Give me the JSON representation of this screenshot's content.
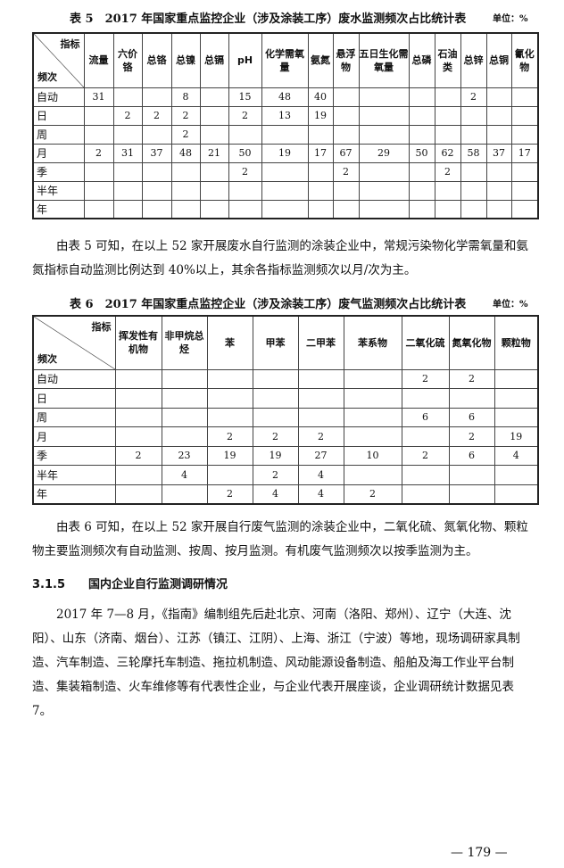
{
  "table5": {
    "caption": "表 5　2017 年国家重点监控企业（涉及涂装工序）废水监测频次占比统计表",
    "unit": "单位：%",
    "corner_top": "指标",
    "corner_bottom": "频次",
    "headers": [
      "流量",
      "六价铬",
      "总铬",
      "总镍",
      "总镉",
      "pH",
      "化学需氧量",
      "氨氮",
      "悬浮物",
      "五日生化需氧量",
      "总磷",
      "石油类",
      "总锌",
      "总铜",
      "氰化物"
    ],
    "rows": [
      {
        "label": "自动",
        "cells": [
          "31",
          "",
          "",
          "8",
          "",
          "15",
          "48",
          "40",
          "",
          "",
          "",
          "",
          "2",
          "",
          ""
        ]
      },
      {
        "label": "日",
        "cells": [
          "",
          "2",
          "2",
          "2",
          "",
          "2",
          "13",
          "19",
          "",
          "",
          "",
          "",
          "",
          "",
          ""
        ]
      },
      {
        "label": "周",
        "cells": [
          "",
          "",
          "",
          "2",
          "",
          "",
          "",
          "",
          "",
          "",
          "",
          "",
          "",
          "",
          ""
        ]
      },
      {
        "label": "月",
        "cells": [
          "2",
          "31",
          "37",
          "48",
          "21",
          "50",
          "19",
          "17",
          "67",
          "29",
          "50",
          "62",
          "58",
          "37",
          "17"
        ]
      },
      {
        "label": "季",
        "cells": [
          "",
          "",
          "",
          "",
          "",
          "2",
          "",
          "",
          "2",
          "",
          "",
          "2",
          "",
          "",
          ""
        ]
      },
      {
        "label": "半年",
        "cells": [
          "",
          "",
          "",
          "",
          "",
          "",
          "",
          "",
          "",
          "",
          "",
          "",
          "",
          "",
          ""
        ]
      },
      {
        "label": "年",
        "cells": [
          "",
          "",
          "",
          "",
          "",
          "",
          "",
          "",
          "",
          "",
          "",
          "",
          "",
          "",
          ""
        ]
      }
    ]
  },
  "para1": "由表 5 可知，在以上 52 家开展废水自行监测的涂装企业中，常规污染物化学需氧量和氨氮指标自动监测比例达到 40%以上，其余各指标监测频次以月/次为主。",
  "table6": {
    "caption": "表 6　2017 年国家重点监控企业（涉及涂装工序）废气监测频次占比统计表",
    "unit": "单位：%",
    "corner_top": "指标",
    "corner_bottom": "频次",
    "headers": [
      "挥发性有机物",
      "非甲烷总烃",
      "苯",
      "甲苯",
      "二甲苯",
      "苯系物",
      "二氧化硫",
      "氮氧化物",
      "颗粒物"
    ],
    "rows": [
      {
        "label": "自动",
        "cells": [
          "",
          "",
          "",
          "",
          "",
          "",
          "2",
          "2",
          ""
        ]
      },
      {
        "label": "日",
        "cells": [
          "",
          "",
          "",
          "",
          "",
          "",
          "",
          "",
          ""
        ]
      },
      {
        "label": "周",
        "cells": [
          "",
          "",
          "",
          "",
          "",
          "",
          "6",
          "6",
          ""
        ]
      },
      {
        "label": "月",
        "cells": [
          "",
          "",
          "2",
          "2",
          "2",
          "",
          "",
          "2",
          "19"
        ]
      },
      {
        "label": "季",
        "cells": [
          "2",
          "23",
          "19",
          "19",
          "27",
          "10",
          "2",
          "6",
          "4"
        ]
      },
      {
        "label": "半年",
        "cells": [
          "",
          "4",
          "",
          "2",
          "4",
          "",
          "",
          "",
          ""
        ]
      },
      {
        "label": "年",
        "cells": [
          "",
          "",
          "2",
          "4",
          "4",
          "2",
          "",
          "",
          ""
        ]
      }
    ]
  },
  "para2": "由表 6 可知，在以上 52 家开展自行废气监测的涂装企业中，二氧化硫、氮氧化物、颗粒物主要监测频次有自动监测、按周、按月监测。有机废气监测频次以按季监测为主。",
  "section": "3.1.5　　国内企业自行监测调研情况",
  "para3": "2017 年 7—8 月，《指南》编制组先后赴北京、河南（洛阳、郑州）、辽宁（大连、沈阳）、山东（济南、烟台）、江苏（镇江、江阴）、上海、浙江（宁波）等地，现场调研家具制造、汽车制造、三轮摩托车制造、拖拉机制造、风动能源设备制造、船舶及海工作业平台制造、集装箱制造、火车维修等有代表性企业，与企业代表开展座谈，企业调研统计数据见表 7。",
  "page_number": "— 179 —"
}
